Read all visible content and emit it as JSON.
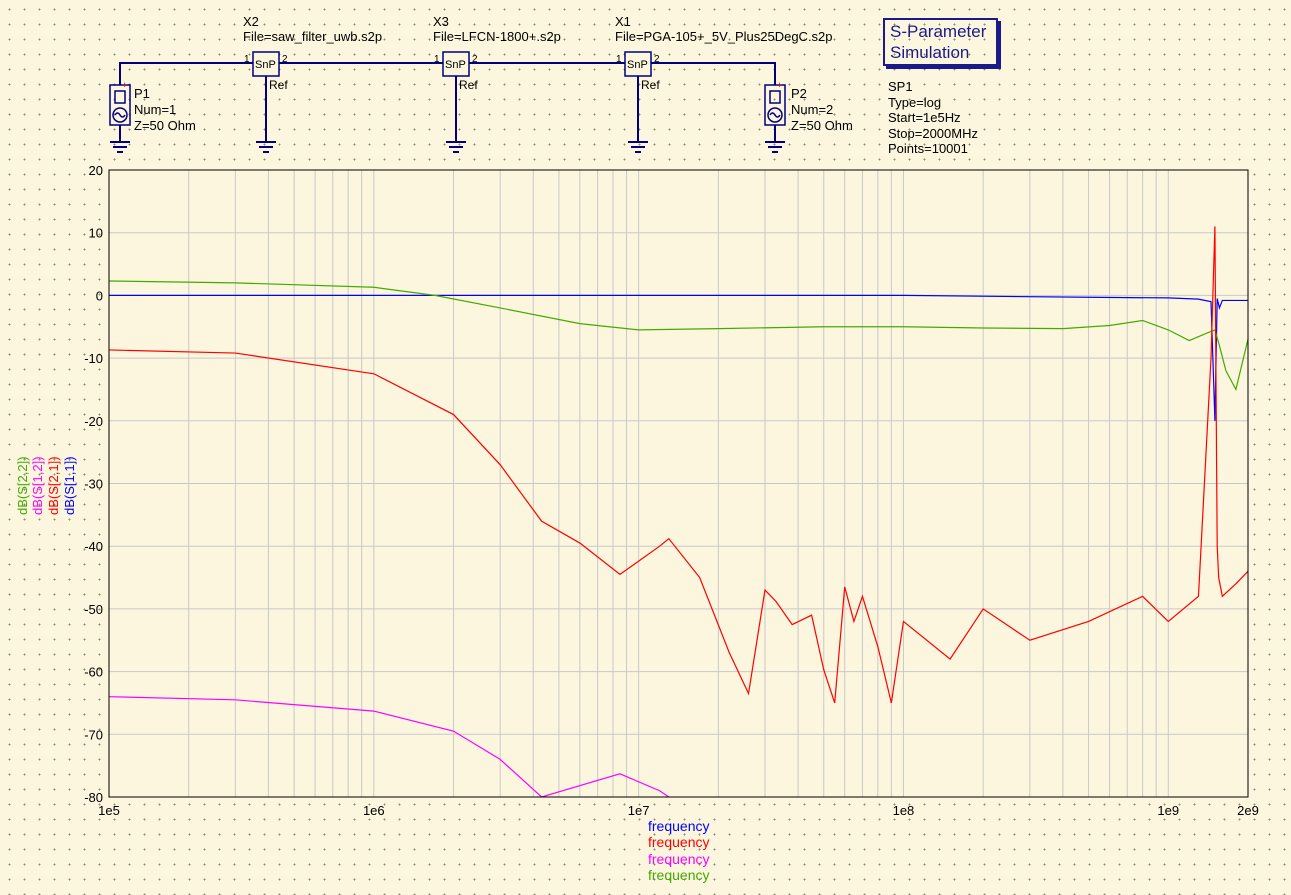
{
  "schematic": {
    "components": [
      {
        "ref": "X2",
        "file": "File=saw_filter_uwb.s2p",
        "symbol": "SnP",
        "pin1": "1",
        "pin2": "2",
        "ref_pin": "Ref"
      },
      {
        "ref": "X3",
        "file": "File=LFCN-1800+.s2p",
        "symbol": "SnP",
        "pin1": "1",
        "pin2": "2",
        "ref_pin": "Ref"
      },
      {
        "ref": "X1",
        "file": "File=PGA-105+_5V_Plus25DegC.s2p",
        "symbol": "SnP",
        "pin1": "1",
        "pin2": "2",
        "ref_pin": "Ref"
      }
    ],
    "ports": [
      {
        "name": "P1",
        "num": "Num=1",
        "z": "Z=50 Ohm"
      },
      {
        "name": "P2",
        "num": "Num=2",
        "z": "Z=50 Ohm"
      }
    ],
    "sim": {
      "title_line1": "S-Parameter",
      "title_line2": "Simulation",
      "name": "SP1",
      "type": "Type=log",
      "start": "Start=1e5Hz",
      "stop": "Stop=2000MHz",
      "points": "Points=10001"
    }
  },
  "plot": {
    "y_labels": [
      {
        "text": "dB(S[2,2])",
        "color": "#44aa00"
      },
      {
        "text": "dB(S[1,2])",
        "color": "#ff00ff"
      },
      {
        "text": "dB(S[2,1])",
        "color": "#ff0000"
      },
      {
        "text": "dB(S[1,1])",
        "color": "#0000ff"
      }
    ],
    "legend": [
      {
        "text": "frequency",
        "color": "#0000ff"
      },
      {
        "text": "frequency",
        "color": "#ff0000"
      },
      {
        "text": "frequency",
        "color": "#ff00ff"
      },
      {
        "text": "frequency",
        "color": "#44aa00"
      }
    ]
  },
  "chart_data": {
    "type": "line",
    "x_scale": "log",
    "xlim": [
      100000,
      2000000000
    ],
    "ylim": [
      -80,
      20
    ],
    "y_ticks": [
      20,
      10,
      0,
      -10,
      -20,
      -30,
      -40,
      -50,
      -60,
      -70,
      -80
    ],
    "x_tick_labels": [
      "1e5",
      "1e6",
      "1e7",
      "1e8",
      "1e9",
      "2e9"
    ],
    "x_ticks": [
      100000,
      1000000,
      10000000,
      100000000,
      1000000000,
      2000000000
    ],
    "grid": true,
    "series": [
      {
        "name": "dB(S[1,1])",
        "color": "#0000ff",
        "x": [
          100000,
          1000000,
          10000000,
          100000000,
          500000000,
          1000000000,
          1300000000,
          1450000000,
          1500000000,
          1530000000,
          1560000000,
          1600000000,
          2000000000
        ],
        "y": [
          0,
          0,
          0,
          0,
          -0.3,
          -0.4,
          -0.6,
          -1.0,
          -20,
          -0.5,
          -2,
          -0.8,
          -0.8
        ]
      },
      {
        "name": "dB(S[2,2])",
        "color": "#44aa00",
        "x": [
          100000,
          300000,
          1000000,
          1700000,
          3000000,
          6000000,
          10000000,
          20000000,
          50000000,
          100000000,
          200000000,
          400000000,
          600000000,
          800000000,
          1000000000,
          1200000000,
          1400000000,
          1500000000,
          1560000000,
          1650000000,
          1800000000,
          2000000000
        ],
        "y": [
          2.3,
          2.0,
          1.3,
          0.0,
          -2.0,
          -4.5,
          -5.5,
          -5.3,
          -5.0,
          -5.0,
          -5.2,
          -5.3,
          -4.8,
          -4.0,
          -5.5,
          -7.2,
          -6.0,
          -5.5,
          -8,
          -12,
          -15,
          -7
        ]
      },
      {
        "name": "dB(S[2,1])",
        "color": "#ff0000",
        "x": [
          100000,
          300000,
          1000000,
          2000000,
          3000000,
          4300000,
          6000000,
          8500000,
          12000000,
          13000000,
          17000000,
          22000000,
          26000000,
          30000000,
          33000000,
          38000000,
          45000000,
          50000000,
          55000000,
          60000000,
          65000000,
          70000000,
          80000000,
          90000000,
          100000000,
          150000000,
          200000000,
          300000000,
          500000000,
          800000000,
          1000000000,
          1300000000,
          1450000000,
          1500000000,
          1530000000,
          1550000000,
          1600000000,
          1800000000,
          2000000000
        ],
        "y": [
          -8.7,
          -9.2,
          -12.5,
          -19,
          -27,
          -36,
          -39.5,
          -44.5,
          -40,
          -38.8,
          -45,
          -57,
          -63.5,
          -47,
          -48.8,
          -52.5,
          -51,
          -59.7,
          -65,
          -46.5,
          -52,
          -48,
          -56,
          -65,
          -52,
          -58,
          -50,
          -55,
          -52,
          -48,
          -52,
          -48,
          -10,
          11,
          -40,
          -45,
          -48,
          -46,
          -44
        ]
      },
      {
        "name": "dB(S[1,2])",
        "color": "#ff00ff",
        "x": [
          100000,
          300000,
          1000000,
          2000000,
          3000000,
          4300000,
          8500000,
          12000000,
          13000000
        ],
        "y": [
          -64,
          -64.5,
          -66.3,
          -69.5,
          -74,
          -80,
          -76.3,
          -79,
          -80
        ]
      }
    ]
  }
}
